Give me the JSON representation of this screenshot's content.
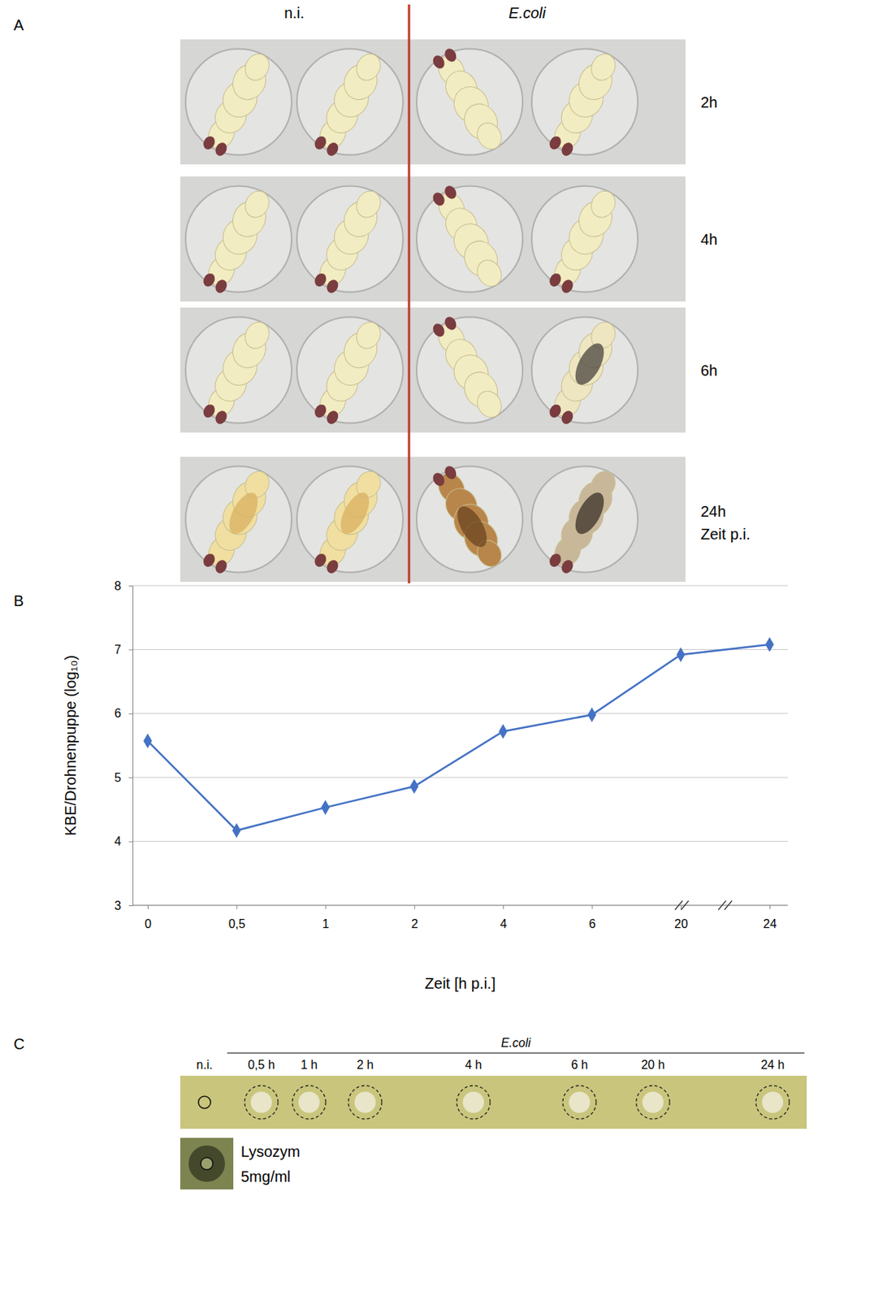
{
  "figure": {
    "panel_letters": [
      "A",
      "B",
      "C"
    ]
  },
  "panel_a": {
    "groups": [
      "n.i.",
      "E.coli"
    ],
    "times": [
      "2h",
      "4h",
      "6h",
      "24h"
    ],
    "time_axis_label": "Zeit p.i."
  },
  "chart_data": {
    "type": "line",
    "categories": [
      "0",
      "0,5",
      "1",
      "2",
      "4",
      "6",
      "20",
      "24"
    ],
    "values": [
      5.57,
      4.17,
      4.53,
      4.86,
      5.72,
      5.98,
      6.92,
      7.08
    ],
    "color": "#4472c4",
    "marker": "diamond",
    "x_label": "Zeit [h p.i.]",
    "y_label": "KBE/Drohnenpuppe (log₁₀)",
    "ylim": [
      3,
      8
    ],
    "yticks": [
      3,
      4,
      5,
      6,
      7,
      8
    ],
    "grid": true
  },
  "panel_c": {
    "group_label": "E.coli",
    "control_label": "n.i.",
    "times": [
      "0,5 h",
      "1 h",
      "2 h",
      "4 h",
      "6 h",
      "20 h",
      "24 h"
    ],
    "reference_label": "Lysozym",
    "reference_concentration": "5mg/ml"
  }
}
